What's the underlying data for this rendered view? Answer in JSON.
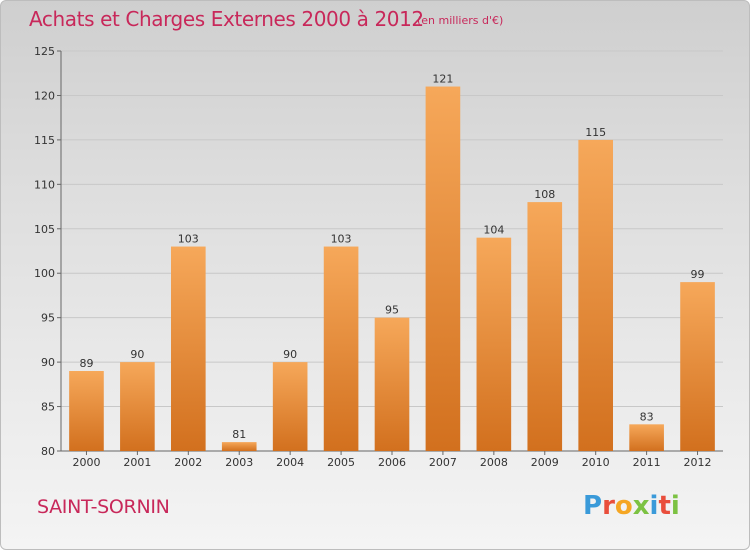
{
  "header": {
    "title": "Achats et Charges Externes 2000 à 2012",
    "subtitle": "(en milliers d'€)"
  },
  "footer": {
    "commune": "SAINT-SORNIN",
    "logo_text": "Proxiti"
  },
  "colors": {
    "title": "#c8285a",
    "bar_top": "#f6a85a",
    "bar_bottom": "#d2701e",
    "grid": "#c8c8c8",
    "logo": [
      "#3a9ad9",
      "#e94e3c",
      "#f5a623",
      "#7cc242",
      "#3a9ad9",
      "#e94e3c",
      "#7cc242"
    ]
  },
  "chart_data": {
    "type": "bar",
    "title": "Achats et Charges Externes 2000 à 2012",
    "subtitle": "(en milliers d'€)",
    "categories": [
      "2000",
      "2001",
      "2002",
      "2003",
      "2004",
      "2005",
      "2006",
      "2007",
      "2008",
      "2009",
      "2010",
      "2011",
      "2012"
    ],
    "values": [
      89,
      90,
      103,
      81,
      90,
      103,
      95,
      121,
      104,
      108,
      115,
      83,
      99
    ],
    "ylim": [
      80,
      125
    ],
    "yticks": [
      80,
      85,
      90,
      95,
      100,
      105,
      110,
      115,
      120,
      125
    ],
    "grid": true,
    "data_labels": true
  }
}
